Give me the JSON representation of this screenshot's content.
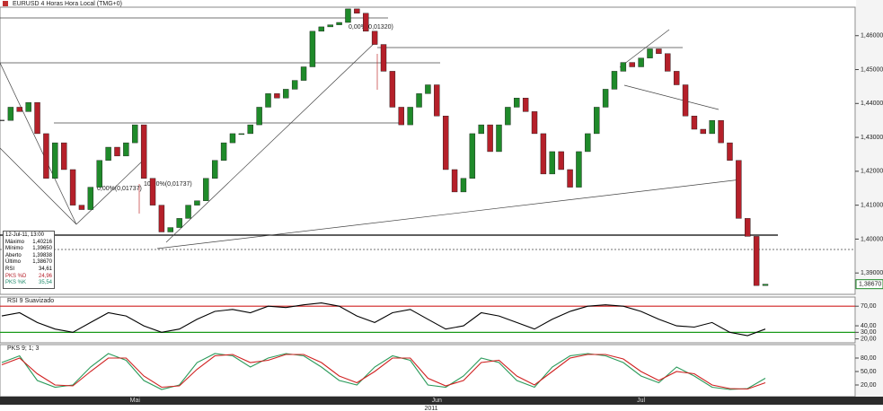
{
  "chart_data": [
    {
      "type": "candlestick",
      "title": "EURUSD 4 Horas Hora Local (TMG+0)",
      "categories": [
        null,
        null,
        null,
        null,
        null,
        null,
        null,
        null,
        null,
        null,
        null,
        null,
        null,
        null,
        null,
        "Mai",
        null,
        null,
        null,
        null,
        null,
        null,
        null,
        null,
        null,
        null,
        null,
        null,
        null,
        null,
        null,
        null,
        null,
        null,
        null,
        null,
        null,
        null,
        null,
        null,
        null,
        null,
        null,
        null,
        null,
        null,
        null,
        null,
        null,
        "Jun",
        null,
        null,
        null,
        null,
        null,
        null,
        null,
        null,
        null,
        null,
        null,
        null,
        null,
        null,
        null,
        null,
        null,
        null,
        null,
        null,
        null,
        null,
        "Jul",
        null,
        null,
        null,
        null,
        null,
        null,
        null,
        null,
        null,
        null,
        null,
        null,
        null,
        null
      ],
      "series": [
        {
          "name": "EURUSD",
          "up_color": "#1f8a2a",
          "down_color": "#b5202a",
          "values": [
            1.435,
            1.4389,
            1.4376,
            1.4403,
            1.4311,
            1.4179,
            1.4284,
            1.4205,
            1.41,
            1.4087,
            1.4153,
            1.4232,
            1.4271,
            1.4245,
            1.4284,
            1.4337,
            1.4179,
            1.41,
            1.4021,
            1.4034,
            1.4061,
            1.41,
            1.4113,
            1.4179,
            1.4232,
            1.4284,
            1.4311,
            1.4311,
            1.4337,
            1.4389,
            1.4429,
            1.4416,
            1.4442,
            1.4468,
            1.4508,
            1.4613,
            1.4626,
            1.4632,
            1.4639,
            1.4679,
            1.4666,
            1.4613,
            1.4574,
            1.4495,
            1.4389,
            1.4337,
            1.4389,
            1.4429,
            1.4455,
            1.4363,
            1.4205,
            1.4139,
            1.4179,
            1.4311,
            1.4337,
            1.4258,
            1.4337,
            1.4389,
            1.4416,
            1.4376,
            1.4311,
            1.4192,
            1.4258,
            1.4205,
            1.4153,
            1.4258,
            1.4311,
            1.4389,
            1.4442,
            1.4495,
            1.4521,
            1.4508,
            1.4534,
            1.4561,
            1.4547,
            1.4495,
            1.4455,
            1.4363,
            1.4324,
            1.4311,
            1.435,
            1.4284,
            1.4232,
            1.4061,
            1.4008,
            1.3863,
            1.3867
          ]
        }
      ],
      "ylim": [
        1.3837,
        1.4684
      ],
      "yticks": [
        {
          "value": 1.46,
          "label": "1,46000"
        },
        {
          "value": 1.45,
          "label": "1,45000"
        },
        {
          "value": 1.44,
          "label": "1,44000"
        },
        {
          "value": 1.43,
          "label": "1,43000"
        },
        {
          "value": 1.42,
          "label": "1,42000"
        },
        {
          "value": 1.41,
          "label": "1,41000"
        },
        {
          "value": 1.4,
          "label": "1,40000"
        },
        {
          "value": 1.39,
          "label": "1,39000"
        }
      ],
      "last_price": {
        "value": 1.3867,
        "label": "1,38670"
      },
      "annotations": [
        "0,00%(0,01320)",
        "0,00%(0,01737)",
        "100,0%(0,01737)"
      ],
      "info": {
        "date": "12-Jul-11, 13:00",
        "rows": [
          {
            "label": "Máximo",
            "value": "1,40216"
          },
          {
            "label": "Mínimo",
            "value": "1,39650"
          },
          {
            "label": "Aberto",
            "value": "1,39838"
          },
          {
            "label": "Último",
            "value": "1,38670"
          },
          {
            "label": "RSI",
            "value": "34,61"
          },
          {
            "label": "PKS %D",
            "value": "24,96",
            "color": "#b5202a"
          },
          {
            "label": "PKS %K",
            "value": "35,54",
            "color": "#1f8a6a"
          }
        ]
      },
      "time_label": "2011"
    },
    {
      "type": "line",
      "title": "RSI 9 Suavizado",
      "ylim": [
        14,
        84
      ],
      "yticks": [
        {
          "value": 70,
          "label": "70,00"
        },
        {
          "value": 40,
          "label": "40,00"
        },
        {
          "value": 30,
          "label": "30,00"
        },
        {
          "value": 20,
          "label": "20,00"
        }
      ],
      "bands": [
        {
          "value": 70,
          "color": "#d02020"
        },
        {
          "value": 30,
          "color": "#1a9a1a"
        }
      ],
      "series": [
        {
          "name": "RSI",
          "color": "#000000",
          "values": [
            55,
            60,
            45,
            35,
            30,
            45,
            60,
            55,
            40,
            30,
            35,
            50,
            62,
            65,
            60,
            70,
            68,
            72,
            75,
            70,
            55,
            45,
            60,
            65,
            50,
            35,
            40,
            60,
            55,
            45,
            35,
            50,
            62,
            70,
            72,
            70,
            62,
            50,
            40,
            38,
            45,
            30,
            25,
            35
          ]
        }
      ]
    },
    {
      "type": "line",
      "title": "PKS 9; 1; 3",
      "ylim": [
        -6,
        110
      ],
      "yticks": [
        {
          "value": 80,
          "label": "80,00"
        },
        {
          "value": 50,
          "label": "50,00"
        },
        {
          "value": 20,
          "label": "20,00"
        }
      ],
      "series": [
        {
          "name": "%K",
          "color": "#2a9a5a",
          "values": [
            70,
            85,
            30,
            15,
            20,
            60,
            90,
            75,
            30,
            10,
            20,
            70,
            90,
            85,
            60,
            80,
            90,
            85,
            60,
            30,
            20,
            60,
            85,
            75,
            20,
            15,
            40,
            80,
            70,
            30,
            15,
            60,
            85,
            90,
            85,
            70,
            40,
            25,
            60,
            40,
            15,
            10,
            12,
            35
          ]
        },
        {
          "name": "%D",
          "color": "#d02020",
          "values": [
            65,
            80,
            45,
            20,
            18,
            50,
            80,
            80,
            40,
            15,
            18,
            55,
            85,
            88,
            70,
            75,
            88,
            88,
            70,
            40,
            25,
            50,
            80,
            80,
            35,
            18,
            30,
            70,
            75,
            40,
            20,
            50,
            80,
            88,
            88,
            78,
            50,
            30,
            50,
            45,
            20,
            12,
            11,
            25
          ]
        }
      ]
    }
  ]
}
